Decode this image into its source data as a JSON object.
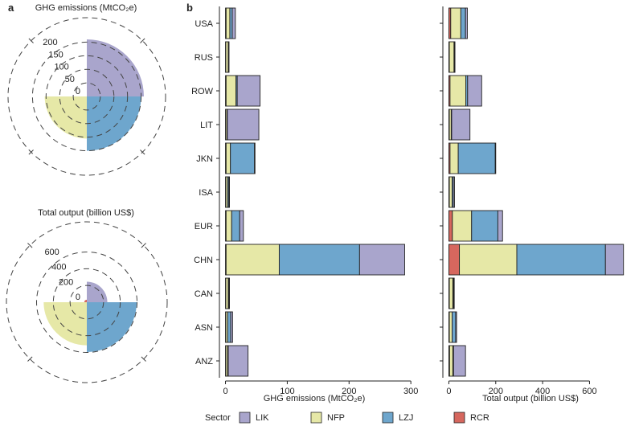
{
  "panel_labels": {
    "a": "a",
    "b": "b"
  },
  "colors": {
    "LIK": "#a9a5cc",
    "NFP": "#e6e8a7",
    "LZJ": "#6ea6cd",
    "RCR": "#d6675e",
    "stroke": "#222222",
    "grid": "#444444"
  },
  "legend": {
    "title": "Sector",
    "items": [
      {
        "key": "LIK",
        "label": "LIK"
      },
      {
        "key": "NFP",
        "label": "NFP"
      },
      {
        "key": "LZJ",
        "label": "LZJ"
      },
      {
        "key": "RCR",
        "label": "RCR"
      }
    ]
  },
  "chart_data": [
    {
      "type": "polar",
      "title": "GHG emissions (MtCO₂e)",
      "radial_ticks": [
        0,
        50,
        100,
        150,
        200
      ],
      "rlim": [
        0,
        290
      ],
      "slices": [
        {
          "sector": "LIK",
          "value": 210
        },
        {
          "sector": "LZJ",
          "value": 200
        },
        {
          "sector": "NFP",
          "value": 155
        },
        {
          "sector": "RCR",
          "value": 0
        }
      ]
    },
    {
      "type": "polar",
      "title": "Total output (billion US$)",
      "radial_ticks": [
        0,
        200,
        400,
        600
      ],
      "rlim": [
        0,
        960
      ],
      "slices": [
        {
          "sector": "LIK",
          "value": 245
        },
        {
          "sector": "LZJ",
          "value": 595
        },
        {
          "sector": "NFP",
          "value": 515
        },
        {
          "sector": "RCR",
          "value": 30
        }
      ]
    },
    {
      "type": "bar",
      "orientation": "horizontal",
      "stacked": true,
      "xlabel": "GHG emissions (MtCO₂e)",
      "xlim": [
        -2,
        305
      ],
      "xticks": [
        0,
        100,
        200,
        300
      ],
      "categories": [
        "USA",
        "RUS",
        "ROW",
        "LIT",
        "JKN",
        "ISA",
        "EUR",
        "CHN",
        "CAN",
        "ASN",
        "ANZ"
      ],
      "series": [
        {
          "name": "RCR",
          "values": [
            1,
            0.5,
            1,
            0.5,
            1,
            0.5,
            1,
            1,
            0.5,
            0.5,
            0.5
          ]
        },
        {
          "name": "NFP",
          "values": [
            6,
            4,
            16,
            2,
            7,
            3,
            9,
            86,
            4,
            3,
            3
          ]
        },
        {
          "name": "LZJ",
          "values": [
            4,
            0.5,
            2,
            0.5,
            39,
            2,
            13,
            130,
            1,
            5,
            1
          ]
        },
        {
          "name": "LIK",
          "values": [
            5,
            0.5,
            37,
            51,
            0.5,
            1,
            6,
            73,
            1,
            3,
            32
          ]
        }
      ]
    },
    {
      "type": "bar",
      "orientation": "horizontal",
      "stacked": true,
      "xlabel": "Total output (billion US$)",
      "xlim": [
        -5,
        770
      ],
      "xticks": [
        0,
        200,
        400,
        600
      ],
      "categories": [
        "USA",
        "RUS",
        "ROW",
        "LIT",
        "JKN",
        "ISA",
        "EUR",
        "CHN",
        "CAN",
        "ASN",
        "ANZ"
      ],
      "series": [
        {
          "name": "RCR",
          "values": [
            8,
            2,
            5,
            2,
            5,
            2,
            15,
            45,
            2,
            2,
            3
          ]
        },
        {
          "name": "NFP",
          "values": [
            43,
            20,
            67,
            8,
            35,
            12,
            82,
            245,
            15,
            12,
            14
          ]
        },
        {
          "name": "LZJ",
          "values": [
            20,
            2,
            8,
            2,
            158,
            5,
            112,
            378,
            3,
            15,
            3
          ]
        },
        {
          "name": "LIK",
          "values": [
            8,
            1,
            60,
            78,
            2,
            5,
            20,
            77,
            3,
            4,
            51
          ]
        }
      ]
    }
  ]
}
